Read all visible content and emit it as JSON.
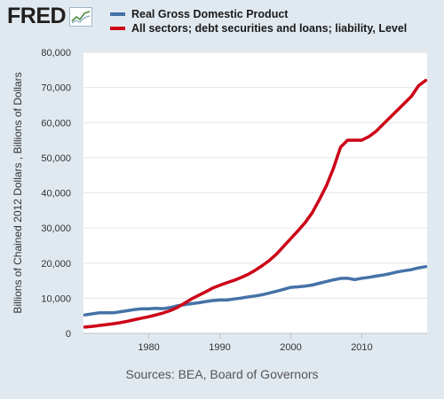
{
  "header": {
    "logo_text": "FRED",
    "logo_icon": "line-chart-icon"
  },
  "colors": {
    "background": "#e1e9f0",
    "plot_background": "#ffffff",
    "gdp": "#4572a7",
    "debt": "#cc0017"
  },
  "chart_data": {
    "type": "line",
    "title": "",
    "xlabel": "",
    "ylabel": "Billions of Chained 2012 Dollars , Billions of Dollars",
    "xlim": [
      1970.8,
      2019.2
    ],
    "ylim": [
      0,
      80000
    ],
    "x_ticks": [
      "1980",
      "1990",
      "2000",
      "2010"
    ],
    "x_tick_values": [
      1980,
      1990,
      2000,
      2010
    ],
    "y_ticks": [
      "0",
      "10,000",
      "20,000",
      "30,000",
      "40,000",
      "50,000",
      "60,000",
      "70,000",
      "80,000"
    ],
    "y_tick_values": [
      0,
      10000,
      20000,
      30000,
      40000,
      50000,
      60000,
      70000,
      80000
    ],
    "grid": "horizontal",
    "legend_position": "top",
    "series": [
      {
        "name": "Real Gross Domestic Product",
        "color": "#4572a7",
        "x": [
          1971,
          1972,
          1973,
          1974,
          1975,
          1976,
          1977,
          1978,
          1979,
          1980,
          1981,
          1982,
          1983,
          1984,
          1985,
          1986,
          1987,
          1988,
          1989,
          1990,
          1991,
          1992,
          1993,
          1994,
          1995,
          1996,
          1997,
          1998,
          1999,
          2000,
          2001,
          2002,
          2003,
          2004,
          2005,
          2006,
          2007,
          2008,
          2009,
          2010,
          2011,
          2012,
          2013,
          2014,
          2015,
          2016,
          2017,
          2018,
          2019
        ],
        "values": [
          5250,
          5550,
          5850,
          5850,
          5850,
          6150,
          6450,
          6800,
          7000,
          7000,
          7150,
          7050,
          7350,
          7850,
          8150,
          8450,
          8700,
          9050,
          9350,
          9500,
          9500,
          9800,
          10050,
          10400,
          10650,
          11000,
          11500,
          12000,
          12550,
          13100,
          13250,
          13450,
          13750,
          14250,
          14750,
          15250,
          15650,
          15700,
          15300,
          15700,
          15950,
          16300,
          16600,
          17000,
          17500,
          17850,
          18150,
          18650,
          19000
        ]
      },
      {
        "name": "All sectors; debt securities and loans; liability, Level",
        "color": "#cc0017",
        "x": [
          1971,
          1972,
          1973,
          1974,
          1975,
          1976,
          1977,
          1978,
          1979,
          1980,
          1981,
          1982,
          1983,
          1984,
          1985,
          1986,
          1987,
          1988,
          1989,
          1990,
          1991,
          1992,
          1993,
          1994,
          1995,
          1996,
          1997,
          1998,
          1999,
          2000,
          2001,
          2002,
          2003,
          2004,
          2005,
          2006,
          2007,
          2008,
          2009,
          2010,
          2011,
          2012,
          2013,
          2014,
          2015,
          2016,
          2017,
          2018,
          2019
        ],
        "values": [
          1800,
          2000,
          2250,
          2500,
          2750,
          3050,
          3450,
          3900,
          4350,
          4750,
          5250,
          5800,
          6450,
          7350,
          8550,
          9800,
          10800,
          11800,
          12900,
          13700,
          14400,
          15100,
          15900,
          16800,
          18000,
          19300,
          20800,
          22600,
          24800,
          27000,
          29200,
          31500,
          34300,
          38000,
          42000,
          47000,
          53000,
          55000,
          55000,
          55000,
          56000,
          57500,
          59500,
          61500,
          63500,
          65500,
          67500,
          70500,
          72000
        ]
      }
    ]
  },
  "footer": {
    "source": "Sources: BEA, Board of Governors"
  }
}
